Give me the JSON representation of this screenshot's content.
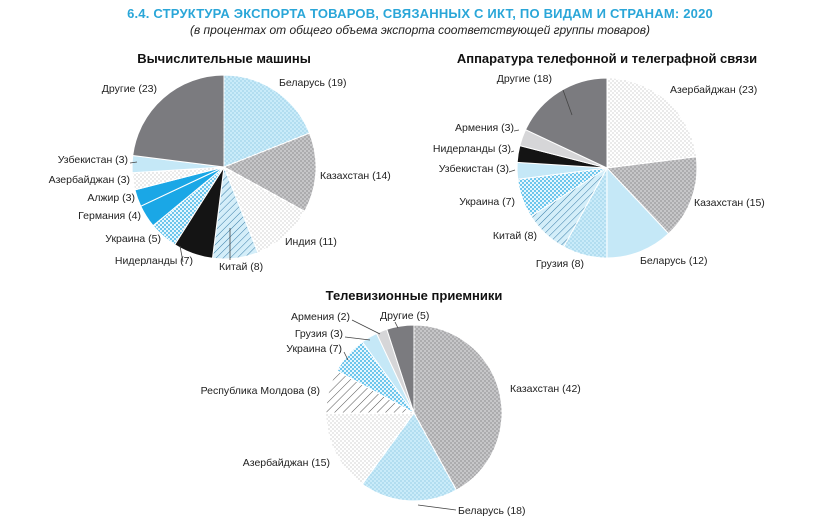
{
  "header": {
    "title": "6.4. СТРУКТУРА ЭКСПОРТА ТОВАРОВ, СВЯЗАННЫХ С ИКТ, ПО ВИДАМ И СТРАНАМ: 2020",
    "subtitle": "(в процентах от общего объема экспорта соответствующей группы товаров)"
  },
  "colors": {
    "title": "#2aa6d8",
    "slice_styles": {
      "solidgray": "#7b7b7f",
      "lightblue": "#c5e8f7",
      "blue": "#1aa7e6",
      "black": "#141414"
    }
  },
  "chart_data": [
    {
      "type": "pie",
      "title": "Вычислительные машины",
      "slices": [
        {
          "label": "Беларусь (19)",
          "value": 19,
          "style": "lightblue-dots"
        },
        {
          "label": "Казахстан (14)",
          "value": 14,
          "style": "gray-dots"
        },
        {
          "label": "Индия (11)",
          "value": 11,
          "style": "white-dots"
        },
        {
          "label": "Китай (8)",
          "value": 8,
          "style": "lightblue-hatch"
        },
        {
          "label": "Нидерланды (7)",
          "value": 7,
          "style": "black"
        },
        {
          "label": "Украина (5)",
          "value": 5,
          "style": "lightblue-checker"
        },
        {
          "label": "Германия (4)",
          "value": 4,
          "style": "blue"
        },
        {
          "label": "Алжир (3)",
          "value": 3,
          "style": "blue"
        },
        {
          "label": "Азербайджан (3)",
          "value": 3,
          "style": "white-dots"
        },
        {
          "label": "Узбекистан (3)",
          "value": 3,
          "style": "lightblue"
        },
        {
          "label": "Другие (23)",
          "value": 23,
          "style": "solidgray"
        }
      ]
    },
    {
      "type": "pie",
      "title": "Аппаратура телефонной и телеграфной связи",
      "slices": [
        {
          "label": "Азербайджан (23)",
          "value": 23,
          "style": "white-dots"
        },
        {
          "label": "Казахстан (15)",
          "value": 15,
          "style": "gray-dots"
        },
        {
          "label": "Беларусь (12)",
          "value": 12,
          "style": "lightblue"
        },
        {
          "label": "Грузия (8)",
          "value": 8,
          "style": "lightblue-dots"
        },
        {
          "label": "Китай (8)",
          "value": 8,
          "style": "lightblue-hatch"
        },
        {
          "label": "Украина (7)",
          "value": 7,
          "style": "lightblue-checker"
        },
        {
          "label": "Узбекистан (3)",
          "value": 3,
          "style": "lightblue"
        },
        {
          "label": "Нидерланды (3)",
          "value": 3,
          "style": "black"
        },
        {
          "label": "Армения (3)",
          "value": 3,
          "style": "lightgray"
        },
        {
          "label": "Другие (18)",
          "value": 18,
          "style": "solidgray"
        }
      ]
    },
    {
      "type": "pie",
      "title": "Телевизионные приемники",
      "slices": [
        {
          "label": "Казахстан (42)",
          "value": 42,
          "style": "gray-dots"
        },
        {
          "label": "Беларусь (18)",
          "value": 18,
          "style": "lightblue-dots"
        },
        {
          "label": "Азербайджан (15)",
          "value": 15,
          "style": "white-dots"
        },
        {
          "label": "Республика Молдова (8)",
          "value": 8,
          "style": "white-hatch"
        },
        {
          "label": "Украина (7)",
          "value": 7,
          "style": "lightblue-checker"
        },
        {
          "label": "Грузия (3)",
          "value": 3,
          "style": "lightblue"
        },
        {
          "label": "Армения (2)",
          "value": 2,
          "style": "lightgray"
        },
        {
          "label": "Другие (5)",
          "value": 5,
          "style": "solidgray"
        }
      ]
    }
  ]
}
